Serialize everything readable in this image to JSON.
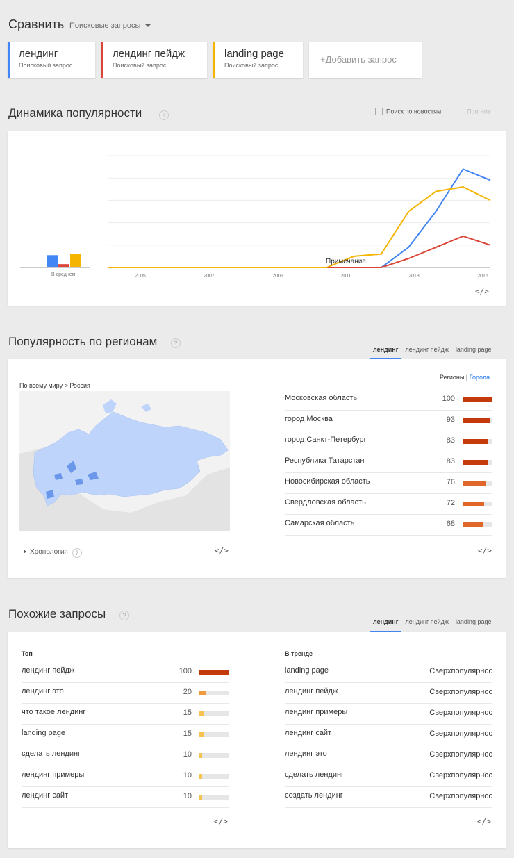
{
  "header": {
    "title": "Сравнить",
    "dropdown_label": "Поисковые запросы"
  },
  "terms": [
    {
      "name": "лендинг",
      "type": "Поисковый запрос",
      "color": "#4285f4"
    },
    {
      "name": "лендинг пейдж",
      "type": "Поисковый запрос",
      "color": "#db4437"
    },
    {
      "name": "landing page",
      "type": "Поисковый запрос",
      "color": "#f4b400"
    }
  ],
  "add_term_label": "+Добавить запрос",
  "interest": {
    "title": "Динамика популярности",
    "news_label": "Поиск по новостям",
    "forecast_label": "Прогноз",
    "avg_label": "В среднем",
    "note_label": "Примечание",
    "years": [
      "2005",
      "2007",
      "2009",
      "2011",
      "2013",
      "2015"
    ],
    "embed": "</>"
  },
  "chart_data": {
    "type": "line",
    "x": [
      "2004",
      "2005",
      "2006",
      "2007",
      "2008",
      "2009",
      "2010",
      "2011",
      "2012",
      "2012.5",
      "2013",
      "2013.5",
      "2014",
      "2014.5",
      "2015"
    ],
    "ylim": [
      0,
      100
    ],
    "averages": [
      11,
      3,
      12
    ],
    "series": [
      {
        "name": "лендинг",
        "color": "#4285f4",
        "values": [
          0,
          0,
          0,
          0,
          0,
          0,
          0,
          0,
          0,
          0,
          0,
          18,
          50,
          88,
          78
        ]
      },
      {
        "name": "лендинг пейдж",
        "color": "#db4437",
        "values": [
          0,
          0,
          0,
          0,
          0,
          0,
          0,
          0,
          0,
          0,
          0,
          8,
          18,
          28,
          20
        ]
      },
      {
        "name": "landing page",
        "color": "#f4b400",
        "values": [
          0,
          0,
          0,
          0,
          0,
          0,
          0,
          0,
          0,
          10,
          12,
          50,
          68,
          72,
          60
        ]
      }
    ]
  },
  "regions": {
    "title": "Популярность по регионам",
    "tabs": [
      "лендинг",
      "лендинг пейдж",
      "landing page"
    ],
    "breadcrumb": "По всему миру > Россия",
    "toggle_regions": "Регионы",
    "toggle_sep": "|",
    "toggle_cities": "Города",
    "timeline_label": "Хронология",
    "embed": "</>",
    "rows": [
      {
        "name": "Московская область",
        "value": 100
      },
      {
        "name": "город Москва",
        "value": 93
      },
      {
        "name": "город Санкт-Петербург",
        "value": 83
      },
      {
        "name": "Республика Татарстан",
        "value": 83
      },
      {
        "name": "Новосибирская область",
        "value": 76
      },
      {
        "name": "Свердловская область",
        "value": 72
      },
      {
        "name": "Самарская область",
        "value": 68
      }
    ]
  },
  "related": {
    "title": "Похожие запросы",
    "tabs": [
      "лендинг",
      "лендинг пейдж",
      "landing page"
    ],
    "top_label": "Топ",
    "rising_label": "В тренде",
    "embed": "</>",
    "top": [
      {
        "name": "лендинг пейдж",
        "value": 100
      },
      {
        "name": "лендинг это",
        "value": 20
      },
      {
        "name": "что такое лендинг",
        "value": 15
      },
      {
        "name": "landing page",
        "value": 15
      },
      {
        "name": "сделать лендинг",
        "value": 10
      },
      {
        "name": "лендинг примеры",
        "value": 10
      },
      {
        "name": "лендинг сайт",
        "value": 10
      }
    ],
    "rising": [
      {
        "name": "landing page",
        "status": "Сверхпопулярнос"
      },
      {
        "name": "лендинг пейдж",
        "status": "Сверхпопулярнос"
      },
      {
        "name": "лендинг примеры",
        "status": "Сверхпопулярнос"
      },
      {
        "name": "лендинг сайт",
        "status": "Сверхпопулярнос"
      },
      {
        "name": "лендинг это",
        "status": "Сверхпопулярнос"
      },
      {
        "name": "сделать лендинг",
        "status": "Сверхпопулярнос"
      },
      {
        "name": "создать лендинг",
        "status": "Сверхпопулярнос"
      }
    ]
  }
}
